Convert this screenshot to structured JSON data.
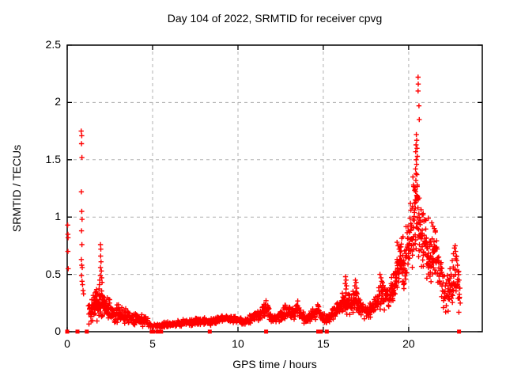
{
  "chart_data": {
    "type": "scatter",
    "title": "Day 104 of 2022, SRMTID for receiver cpvg",
    "xlabel": "GPS time / hours",
    "ylabel": "SRMTID / TECUs",
    "x_range": [
      0,
      24.31
    ],
    "y_range": [
      0,
      2.5
    ],
    "x_ticks": [
      {
        "v": 0,
        "label": "0"
      },
      {
        "v": 5,
        "label": "5"
      },
      {
        "v": 10,
        "label": "10"
      },
      {
        "v": 15,
        "label": "15"
      },
      {
        "v": 20,
        "label": "20"
      }
    ],
    "y_ticks": [
      {
        "v": 0,
        "label": "0"
      },
      {
        "v": 0.5,
        "label": "0.5"
      },
      {
        "v": 1,
        "label": "1"
      },
      {
        "v": 1.5,
        "label": "1.5"
      },
      {
        "v": 2,
        "label": "2"
      },
      {
        "v": 2.5,
        "label": "2.5"
      }
    ],
    "grid": true,
    "legend": "none",
    "marker": {
      "shape": "plus",
      "color": "#ff0000",
      "size": 7
    },
    "grid_color": "#b0b0b0",
    "axis_color": "#000000",
    "points": [
      [
        0.03,
        0.93
      ],
      [
        0.04,
        0.85
      ],
      [
        0.05,
        0.82
      ],
      [
        0.04,
        0.7
      ],
      [
        0.06,
        0.55
      ],
      [
        0.82,
        1.75
      ],
      [
        0.85,
        1.71
      ],
      [
        0.84,
        1.64
      ],
      [
        0.86,
        1.52
      ],
      [
        0.83,
        1.22
      ],
      [
        0.85,
        1.05
      ],
      [
        0.87,
        0.98
      ],
      [
        0.84,
        0.88
      ],
      [
        0.86,
        0.76
      ],
      [
        0.83,
        0.63
      ],
      [
        0.85,
        0.58
      ],
      [
        0.88,
        0.56
      ],
      [
        0.84,
        0.49
      ],
      [
        0.87,
        0.44
      ],
      [
        0.9,
        0.41
      ],
      [
        0.93,
        0.36
      ],
      [
        0.96,
        0.33
      ],
      [
        1.94,
        0.49
      ],
      [
        1.95,
        0.56
      ],
      [
        1.95,
        0.76
      ],
      [
        1.96,
        0.66
      ],
      [
        1.97,
        0.72
      ],
      [
        1.98,
        0.61
      ],
      [
        2.0,
        0.53
      ],
      [
        2.02,
        0.47
      ],
      [
        2.04,
        0.43
      ],
      [
        1.91,
        0.45
      ],
      [
        1.89,
        0.41
      ],
      [
        16.28,
        0.42
      ],
      [
        16.3,
        0.48
      ],
      [
        16.33,
        0.45
      ],
      [
        16.36,
        0.4
      ],
      [
        16.85,
        0.4
      ],
      [
        16.88,
        0.45
      ],
      [
        16.92,
        0.43
      ],
      [
        16.95,
        0.38
      ],
      [
        18.32,
        0.5
      ],
      [
        18.38,
        0.47
      ],
      [
        18.42,
        0.44
      ],
      [
        19.32,
        0.78
      ],
      [
        19.38,
        0.75
      ],
      [
        19.44,
        0.72
      ],
      [
        19.5,
        0.7
      ],
      [
        19.55,
        0.74
      ],
      [
        20.55,
        2.22
      ],
      [
        20.56,
        2.16
      ],
      [
        20.55,
        2.1
      ],
      [
        20.6,
        1.97
      ],
      [
        20.62,
        1.85
      ],
      [
        20.45,
        1.72
      ],
      [
        20.47,
        1.67
      ],
      [
        20.43,
        1.63
      ],
      [
        20.49,
        1.6
      ],
      [
        20.41,
        1.57
      ],
      [
        20.51,
        1.53
      ],
      [
        20.44,
        1.5
      ],
      [
        20.46,
        1.46
      ],
      [
        20.4,
        1.42
      ],
      [
        20.48,
        1.37
      ],
      [
        20.42,
        1.32
      ],
      [
        20.5,
        1.28
      ],
      [
        20.38,
        1.24
      ],
      [
        20.52,
        1.18
      ],
      [
        20.36,
        1.12
      ],
      [
        20.54,
        1.08
      ],
      [
        20.34,
        1.04
      ],
      [
        20.1,
        1.12
      ],
      [
        20.13,
        1.06
      ],
      [
        20.08,
        0.99
      ],
      [
        20.16,
        0.93
      ],
      [
        20.25,
        1.35
      ],
      [
        20.28,
        1.28
      ],
      [
        21.0,
        0.97
      ],
      [
        21.15,
        0.99
      ],
      [
        21.35,
        0.95
      ],
      [
        21.42,
        0.92
      ],
      [
        21.5,
        0.9
      ],
      [
        21.56,
        0.87
      ],
      [
        22.42,
        0.55
      ],
      [
        22.48,
        0.5
      ],
      [
        22.55,
        0.62
      ],
      [
        22.62,
        0.68
      ],
      [
        22.68,
        0.73
      ],
      [
        22.72,
        0.75
      ],
      [
        22.75,
        0.7
      ],
      [
        22.78,
        0.66
      ],
      [
        22.82,
        0.62
      ],
      [
        22.86,
        0.58
      ],
      [
        22.9,
        0.52
      ],
      [
        22.95,
        0.45
      ],
      [
        23.0,
        0.38
      ],
      [
        22.98,
        0.3
      ],
      [
        22.35,
        0.45
      ],
      [
        22.3,
        0.4
      ],
      [
        23.02,
        0.25
      ],
      [
        22.94,
        0.17
      ]
    ],
    "zero_markers": [
      0.0,
      0.6,
      1.15,
      4.95,
      5.05,
      5.3,
      5.5,
      8.35,
      11.65,
      14.7,
      14.85,
      15.2,
      22.95
    ],
    "band_seed": 7,
    "band_step": 0.03,
    "band_nodes": [
      [
        1.25,
        0.05,
        0.28,
        2
      ],
      [
        1.6,
        0.08,
        0.4,
        3
      ],
      [
        2.0,
        0.1,
        0.42,
        3
      ],
      [
        2.4,
        0.08,
        0.33,
        3
      ],
      [
        2.8,
        0.07,
        0.26,
        2
      ],
      [
        3.3,
        0.06,
        0.22,
        2
      ],
      [
        3.9,
        0.05,
        0.19,
        2
      ],
      [
        4.5,
        0.04,
        0.15,
        2
      ],
      [
        5.0,
        0.02,
        0.08,
        1
      ],
      [
        5.6,
        0.03,
        0.09,
        2
      ],
      [
        6.2,
        0.04,
        0.1,
        2
      ],
      [
        6.8,
        0.05,
        0.11,
        2
      ],
      [
        7.4,
        0.05,
        0.12,
        2
      ],
      [
        7.9,
        0.06,
        0.13,
        2
      ],
      [
        8.4,
        0.05,
        0.12,
        2
      ],
      [
        8.9,
        0.07,
        0.15,
        2
      ],
      [
        9.4,
        0.08,
        0.16,
        2
      ],
      [
        9.9,
        0.07,
        0.14,
        2
      ],
      [
        10.4,
        0.05,
        0.12,
        2
      ],
      [
        10.9,
        0.08,
        0.17,
        2
      ],
      [
        11.4,
        0.1,
        0.24,
        2
      ],
      [
        11.7,
        0.12,
        0.28,
        2
      ],
      [
        12.0,
        0.06,
        0.15,
        2
      ],
      [
        12.4,
        0.08,
        0.19,
        2
      ],
      [
        12.8,
        0.11,
        0.25,
        2
      ],
      [
        13.2,
        0.09,
        0.21,
        2
      ],
      [
        13.5,
        0.12,
        0.28,
        2
      ],
      [
        13.9,
        0.06,
        0.16,
        2
      ],
      [
        14.3,
        0.08,
        0.2,
        2
      ],
      [
        14.7,
        0.11,
        0.26,
        2
      ],
      [
        15.1,
        0.05,
        0.15,
        2
      ],
      [
        15.5,
        0.08,
        0.2,
        2
      ],
      [
        15.9,
        0.12,
        0.28,
        2
      ],
      [
        16.3,
        0.15,
        0.42,
        3
      ],
      [
        16.6,
        0.13,
        0.32,
        2
      ],
      [
        16.9,
        0.15,
        0.4,
        3
      ],
      [
        17.25,
        0.11,
        0.28,
        2
      ],
      [
        17.6,
        0.09,
        0.24,
        2
      ],
      [
        18.0,
        0.14,
        0.32,
        2
      ],
      [
        18.4,
        0.2,
        0.46,
        2
      ],
      [
        18.8,
        0.16,
        0.4,
        2
      ],
      [
        19.2,
        0.28,
        0.58,
        3
      ],
      [
        19.5,
        0.42,
        0.8,
        3
      ],
      [
        19.8,
        0.34,
        0.9,
        3
      ],
      [
        20.1,
        0.5,
        1.1,
        3
      ],
      [
        20.45,
        0.55,
        1.5,
        3
      ],
      [
        20.7,
        0.5,
        1.2,
        3
      ],
      [
        21.0,
        0.42,
        0.98,
        3
      ],
      [
        21.3,
        0.4,
        0.9,
        3
      ],
      [
        21.55,
        0.5,
        0.92,
        3
      ],
      [
        21.8,
        0.3,
        0.7,
        2
      ],
      [
        22.1,
        0.15,
        0.55,
        2
      ],
      [
        22.45,
        0.15,
        0.5,
        2
      ],
      [
        22.8,
        0.3,
        0.75,
        2
      ],
      [
        23.0,
        0.2,
        0.55,
        2
      ]
    ]
  }
}
